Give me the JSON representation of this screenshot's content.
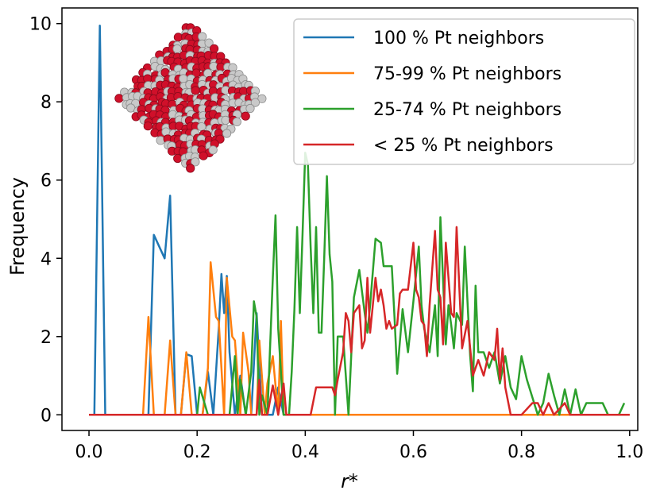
{
  "chart_data": {
    "type": "line",
    "title": "",
    "xlabel": "r*",
    "ylabel": "Frequency",
    "xlim": [
      -0.05,
      1.015
    ],
    "ylim": [
      -0.4,
      10.4
    ],
    "xticks": [
      0.0,
      0.2,
      0.4,
      0.6,
      0.8,
      1.0
    ],
    "xtick_labels": [
      "0.0",
      "0.2",
      "0.4",
      "0.6",
      "0.8",
      "1.0"
    ],
    "yticks": [
      0,
      2,
      4,
      6,
      8,
      10
    ],
    "ytick_labels": [
      "0",
      "2",
      "4",
      "6",
      "8",
      "10"
    ],
    "grid": false,
    "legend_position": "top-right",
    "inset": "nanoparticle-render",
    "series": [
      {
        "name": "100 % Pt neighbors",
        "color": "#1f77b4",
        "points": [
          [
            0.0,
            0
          ],
          [
            0.01,
            0
          ],
          [
            0.02,
            9.95
          ],
          [
            0.03,
            0
          ],
          [
            0.04,
            0
          ],
          [
            0.1,
            0
          ],
          [
            0.11,
            0
          ],
          [
            0.12,
            4.6
          ],
          [
            0.14,
            4.0
          ],
          [
            0.15,
            5.6
          ],
          [
            0.16,
            0
          ],
          [
            0.17,
            0
          ],
          [
            0.18,
            1.55
          ],
          [
            0.19,
            1.5
          ],
          [
            0.2,
            0
          ],
          [
            0.21,
            0
          ],
          [
            0.22,
            1.1
          ],
          [
            0.23,
            0
          ],
          [
            0.24,
            2.2
          ],
          [
            0.245,
            3.6
          ],
          [
            0.25,
            2.6
          ],
          [
            0.255,
            3.55
          ],
          [
            0.26,
            1.6
          ],
          [
            0.27,
            0
          ],
          [
            0.28,
            1.0
          ],
          [
            0.29,
            0
          ],
          [
            0.3,
            0
          ],
          [
            0.31,
            2.6
          ],
          [
            0.32,
            0
          ],
          [
            0.33,
            0
          ],
          [
            0.34,
            0
          ],
          [
            0.35,
            0.7
          ],
          [
            0.36,
            0
          ],
          [
            0.45,
            0
          ]
        ]
      },
      {
        "name": "75-99 % Pt neighbors",
        "color": "#ff7f0e",
        "points": [
          [
            0.0,
            0
          ],
          [
            0.1,
            0
          ],
          [
            0.11,
            2.5
          ],
          [
            0.12,
            0
          ],
          [
            0.14,
            0
          ],
          [
            0.15,
            1.9
          ],
          [
            0.16,
            0
          ],
          [
            0.17,
            0
          ],
          [
            0.18,
            1.6
          ],
          [
            0.19,
            0
          ],
          [
            0.2,
            0
          ],
          [
            0.21,
            0
          ],
          [
            0.22,
            1.2
          ],
          [
            0.225,
            3.9
          ],
          [
            0.235,
            2.5
          ],
          [
            0.24,
            2.4
          ],
          [
            0.25,
            0
          ],
          [
            0.255,
            3.5
          ],
          [
            0.265,
            2.0
          ],
          [
            0.27,
            1.9
          ],
          [
            0.28,
            0
          ],
          [
            0.285,
            2.1
          ],
          [
            0.295,
            1.1
          ],
          [
            0.3,
            0
          ],
          [
            0.31,
            0
          ],
          [
            0.315,
            1.9
          ],
          [
            0.325,
            0
          ],
          [
            0.33,
            0.8
          ],
          [
            0.34,
            1.5
          ],
          [
            0.35,
            0
          ],
          [
            0.355,
            2.4
          ],
          [
            0.36,
            0
          ],
          [
            0.42,
            0
          ],
          [
            0.46,
            0
          ],
          [
            1.0,
            0
          ]
        ]
      },
      {
        "name": "25-74 % Pt neighbors",
        "color": "#2ca02c",
        "points": [
          [
            0.0,
            0
          ],
          [
            0.2,
            0
          ],
          [
            0.205,
            0.7
          ],
          [
            0.22,
            0
          ],
          [
            0.26,
            0
          ],
          [
            0.27,
            1.5
          ],
          [
            0.275,
            0
          ],
          [
            0.28,
            0.9
          ],
          [
            0.29,
            0
          ],
          [
            0.3,
            1.1
          ],
          [
            0.305,
            2.9
          ],
          [
            0.31,
            2.5
          ],
          [
            0.315,
            0
          ],
          [
            0.32,
            0.5
          ],
          [
            0.33,
            0
          ],
          [
            0.34,
            3.5
          ],
          [
            0.345,
            5.1
          ],
          [
            0.35,
            2.2
          ],
          [
            0.36,
            0
          ],
          [
            0.37,
            0
          ],
          [
            0.375,
            1.1
          ],
          [
            0.38,
            2.7
          ],
          [
            0.385,
            4.8
          ],
          [
            0.39,
            2.6
          ],
          [
            0.395,
            4.6
          ],
          [
            0.4,
            6.7
          ],
          [
            0.405,
            6.4
          ],
          [
            0.41,
            4.3
          ],
          [
            0.415,
            2.6
          ],
          [
            0.42,
            4.8
          ],
          [
            0.425,
            2.1
          ],
          [
            0.43,
            2.1
          ],
          [
            0.435,
            4.0
          ],
          [
            0.44,
            6.1
          ],
          [
            0.445,
            4.1
          ],
          [
            0.45,
            3.4
          ],
          [
            0.455,
            0
          ],
          [
            0.46,
            2.0
          ],
          [
            0.47,
            2.0
          ],
          [
            0.48,
            0
          ],
          [
            0.49,
            3.0
          ],
          [
            0.5,
            3.7
          ],
          [
            0.51,
            2.6
          ],
          [
            0.515,
            2.1
          ],
          [
            0.52,
            2.8
          ],
          [
            0.53,
            4.5
          ],
          [
            0.54,
            4.4
          ],
          [
            0.545,
            3.8
          ],
          [
            0.55,
            3.8
          ],
          [
            0.56,
            3.8
          ],
          [
            0.565,
            2.5
          ],
          [
            0.57,
            1.05
          ],
          [
            0.58,
            2.7
          ],
          [
            0.59,
            1.6
          ],
          [
            0.6,
            2.9
          ],
          [
            0.61,
            4.3
          ],
          [
            0.615,
            2.8
          ],
          [
            0.62,
            2.2
          ],
          [
            0.63,
            1.6
          ],
          [
            0.64,
            2.8
          ],
          [
            0.645,
            1.5
          ],
          [
            0.65,
            5.05
          ],
          [
            0.66,
            1.8
          ],
          [
            0.665,
            2.8
          ],
          [
            0.67,
            2.3
          ],
          [
            0.675,
            1.7
          ],
          [
            0.68,
            2.6
          ],
          [
            0.69,
            2.3
          ],
          [
            0.695,
            4.3
          ],
          [
            0.7,
            2.9
          ],
          [
            0.705,
            1.5
          ],
          [
            0.71,
            0.6
          ],
          [
            0.715,
            3.3
          ],
          [
            0.72,
            1.6
          ],
          [
            0.73,
            1.6
          ],
          [
            0.74,
            1.2
          ],
          [
            0.75,
            1.6
          ],
          [
            0.76,
            0.8
          ],
          [
            0.77,
            1.5
          ],
          [
            0.78,
            0.7
          ],
          [
            0.79,
            0.4
          ],
          [
            0.8,
            1.5
          ],
          [
            0.81,
            0.9
          ],
          [
            0.83,
            0
          ],
          [
            0.84,
            0.3
          ],
          [
            0.85,
            1.05
          ],
          [
            0.86,
            0.5
          ],
          [
            0.87,
            0
          ],
          [
            0.88,
            0.65
          ],
          [
            0.89,
            0
          ],
          [
            0.9,
            0.65
          ],
          [
            0.91,
            0
          ],
          [
            0.92,
            0.3
          ],
          [
            0.94,
            0.3
          ],
          [
            0.95,
            0.3
          ],
          [
            0.96,
            0
          ],
          [
            0.98,
            0
          ],
          [
            0.99,
            0.3
          ]
        ]
      },
      {
        "name": "< 25 % Pt neighbors",
        "color": "#d62728",
        "points": [
          [
            0.0,
            0
          ],
          [
            0.31,
            0
          ],
          [
            0.315,
            0.9
          ],
          [
            0.32,
            0
          ],
          [
            0.33,
            0
          ],
          [
            0.34,
            0.75
          ],
          [
            0.35,
            0
          ],
          [
            0.36,
            0.8
          ],
          [
            0.365,
            0
          ],
          [
            0.38,
            0
          ],
          [
            0.39,
            0
          ],
          [
            0.4,
            0
          ],
          [
            0.41,
            0
          ],
          [
            0.42,
            0.7
          ],
          [
            0.45,
            0.7
          ],
          [
            0.455,
            0.5
          ],
          [
            0.46,
            0.9
          ],
          [
            0.47,
            1.6
          ],
          [
            0.475,
            2.6
          ],
          [
            0.48,
            2.4
          ],
          [
            0.485,
            1.6
          ],
          [
            0.49,
            2.6
          ],
          [
            0.5,
            2.8
          ],
          [
            0.505,
            1.7
          ],
          [
            0.51,
            1.9
          ],
          [
            0.515,
            3.5
          ],
          [
            0.52,
            2.1
          ],
          [
            0.53,
            3.5
          ],
          [
            0.535,
            2.9
          ],
          [
            0.54,
            3.2
          ],
          [
            0.545,
            2.8
          ],
          [
            0.55,
            2.2
          ],
          [
            0.555,
            2.4
          ],
          [
            0.56,
            2.2
          ],
          [
            0.57,
            2.3
          ],
          [
            0.575,
            3.1
          ],
          [
            0.58,
            3.2
          ],
          [
            0.585,
            3.2
          ],
          [
            0.59,
            3.2
          ],
          [
            0.6,
            4.4
          ],
          [
            0.605,
            3.2
          ],
          [
            0.61,
            3.0
          ],
          [
            0.615,
            2.4
          ],
          [
            0.62,
            2.3
          ],
          [
            0.625,
            1.5
          ],
          [
            0.63,
            2.8
          ],
          [
            0.64,
            4.7
          ],
          [
            0.645,
            3.2
          ],
          [
            0.65,
            3.0
          ],
          [
            0.655,
            1.8
          ],
          [
            0.66,
            4.4
          ],
          [
            0.67,
            2.6
          ],
          [
            0.675,
            2.5
          ],
          [
            0.68,
            4.8
          ],
          [
            0.69,
            1.7
          ],
          [
            0.7,
            2.4
          ],
          [
            0.71,
            1.0
          ],
          [
            0.72,
            1.4
          ],
          [
            0.73,
            1.0
          ],
          [
            0.74,
            1.6
          ],
          [
            0.75,
            1.4
          ],
          [
            0.755,
            2.2
          ],
          [
            0.76,
            0.9
          ],
          [
            0.765,
            1.7
          ],
          [
            0.77,
            0.7
          ],
          [
            0.78,
            0
          ],
          [
            0.79,
            0
          ],
          [
            0.8,
            0
          ],
          [
            0.82,
            0.3
          ],
          [
            0.83,
            0.3
          ],
          [
            0.84,
            0
          ],
          [
            0.85,
            0.3
          ],
          [
            0.86,
            0
          ],
          [
            0.88,
            0.3
          ],
          [
            0.89,
            0
          ],
          [
            1.0,
            0
          ]
        ]
      }
    ]
  }
}
